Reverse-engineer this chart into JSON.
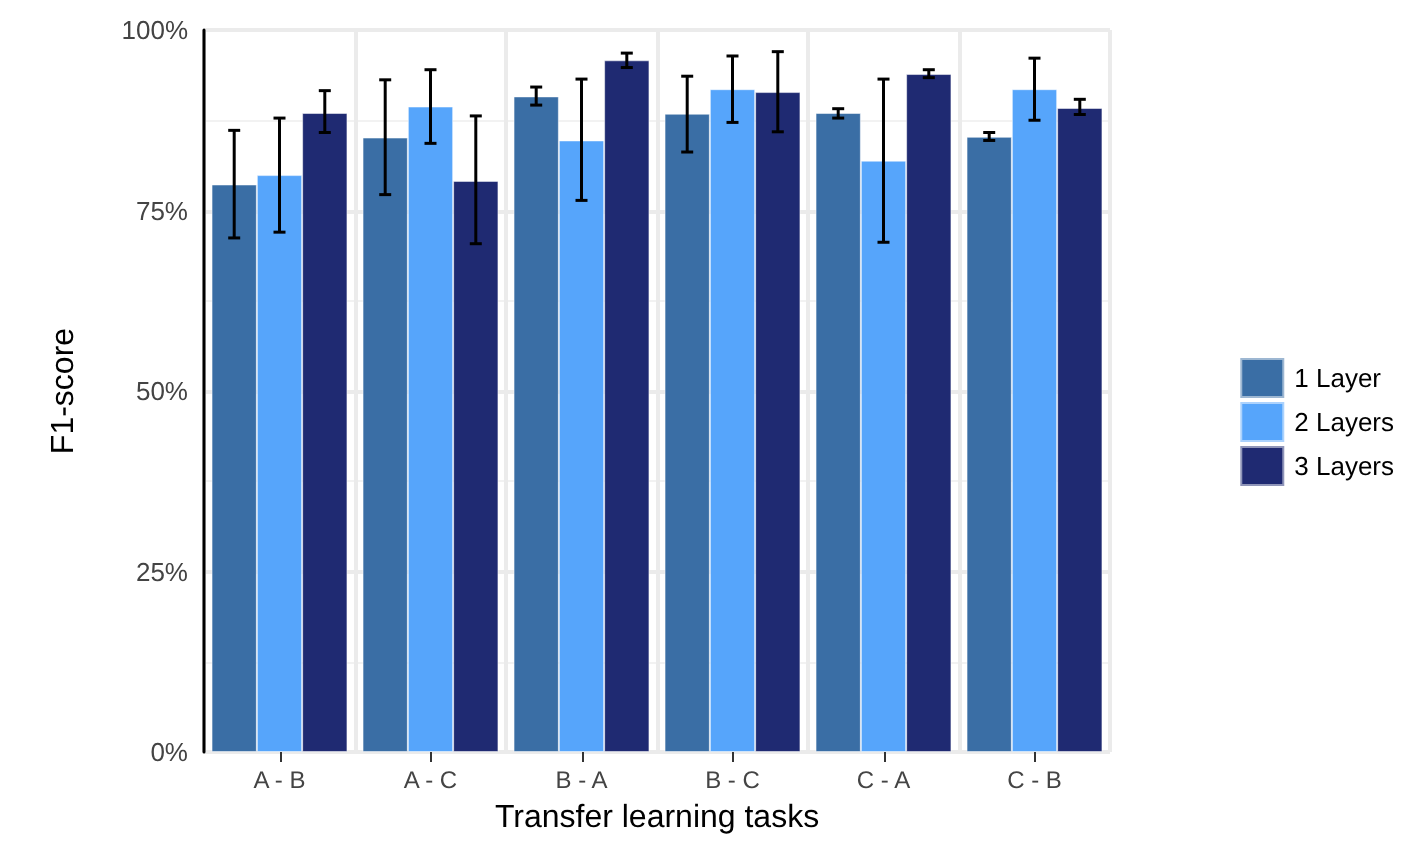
{
  "chart_data": {
    "type": "bar",
    "xlabel": "Transfer learning tasks",
    "ylabel": "F1-score",
    "categories": [
      "A - B",
      "A - C",
      "B - A",
      "B - C",
      "C - A",
      "C - B"
    ],
    "series": [
      {
        "name": "1 Layer",
        "color": "#3a6ea5",
        "values": [
          78.6,
          85.1,
          90.8,
          88.4,
          88.5,
          85.2
        ],
        "errors": [
          [
            71.2,
            86.1
          ],
          [
            77.2,
            93.1
          ],
          [
            89.6,
            92.1
          ],
          [
            83.1,
            93.6
          ],
          [
            87.8,
            89.1
          ],
          [
            84.7,
            85.8
          ]
        ]
      },
      {
        "name": "2 Layers",
        "color": "#56a5fb",
        "values": [
          79.9,
          89.4,
          84.7,
          91.8,
          81.9,
          91.8
        ],
        "errors": [
          [
            72.0,
            87.8
          ],
          [
            84.3,
            94.5
          ],
          [
            76.4,
            93.2
          ],
          [
            87.2,
            96.4
          ],
          [
            70.6,
            93.2
          ],
          [
            87.5,
            96.1
          ]
        ]
      },
      {
        "name": "3 Layers",
        "color": "#1f2a72",
        "values": [
          88.5,
          79.1,
          95.8,
          91.4,
          93.9,
          89.2
        ],
        "errors": [
          [
            85.8,
            91.6
          ],
          [
            70.4,
            88.1
          ],
          [
            94.8,
            96.8
          ],
          [
            85.9,
            97.0
          ],
          [
            93.4,
            94.5
          ],
          [
            88.3,
            90.4
          ]
        ]
      }
    ],
    "ylim": [
      0,
      100
    ],
    "yticks": [
      {
        "value": 0,
        "label": "0%"
      },
      {
        "value": 25,
        "label": "25%"
      },
      {
        "value": 50,
        "label": "50%"
      },
      {
        "value": 75,
        "label": "75%"
      },
      {
        "value": 100,
        "label": "100%"
      }
    ],
    "grid": true,
    "legend": "right"
  }
}
